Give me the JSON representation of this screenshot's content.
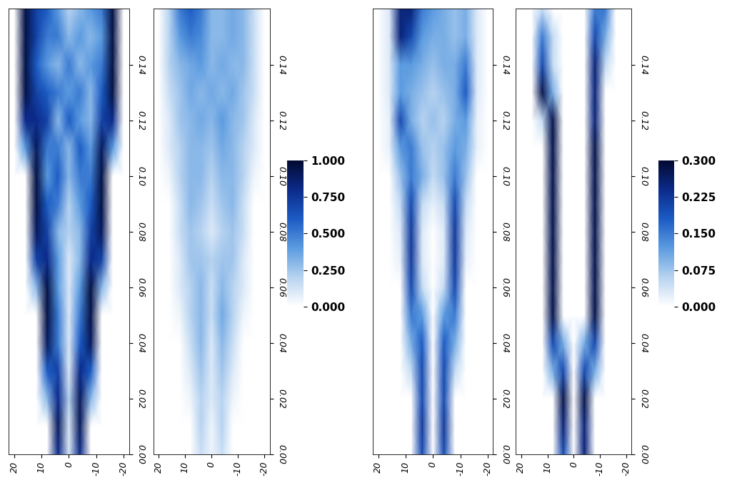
{
  "chart_data": [
    {
      "type": "heatmap",
      "x": [
        -20,
        -16,
        -12,
        -8,
        -4,
        0,
        4,
        8,
        12,
        16,
        20
      ],
      "y": [
        0,
        0.01,
        0.02,
        0.03,
        0.04,
        0.05,
        0.06,
        0.07,
        0.08,
        0.09,
        0.1,
        0.11,
        0.12,
        0.13,
        0.14,
        0.15,
        0.16
      ],
      "cells": [
        [
          0,
          0,
          0,
          0,
          0.8,
          0.1,
          0.8,
          0,
          0,
          0,
          0
        ],
        [
          0,
          0,
          0,
          0,
          0.9,
          0.1,
          0.9,
          0,
          0,
          0,
          0
        ],
        [
          0,
          0,
          0,
          0.3,
          0.9,
          0.2,
          0.8,
          0.3,
          0,
          0,
          0
        ],
        [
          0,
          0,
          0,
          0.6,
          0.8,
          0.1,
          0.7,
          0.6,
          0,
          0,
          0
        ],
        [
          0,
          0,
          0,
          0.9,
          0.6,
          0.1,
          0.5,
          0.9,
          0,
          0,
          0
        ],
        [
          0,
          0,
          0,
          0.95,
          0.5,
          0.1,
          0.5,
          0.95,
          0,
          0,
          0
        ],
        [
          0,
          0,
          0.3,
          0.95,
          0.4,
          0.1,
          0.4,
          0.95,
          0.3,
          0,
          0
        ],
        [
          0,
          0,
          0.7,
          0.8,
          0.3,
          0.1,
          0.4,
          0.8,
          0.7,
          0,
          0
        ],
        [
          0,
          0,
          0.9,
          0.7,
          0.3,
          0.2,
          0.3,
          0.7,
          0.9,
          0,
          0
        ],
        [
          0,
          0,
          0.95,
          0.6,
          0.4,
          0.2,
          0.5,
          0.6,
          0.95,
          0,
          0
        ],
        [
          0,
          0,
          0.95,
          0.5,
          0.5,
          0.3,
          0.6,
          0.4,
          0.95,
          0,
          0
        ],
        [
          0,
          0.4,
          0.9,
          0.4,
          0.6,
          0.3,
          0.5,
          0.5,
          0.9,
          0.4,
          0
        ],
        [
          0,
          0.8,
          0.7,
          0.3,
          0.4,
          0.6,
          0.3,
          0.7,
          0.8,
          0.8,
          0
        ],
        [
          0,
          0.95,
          0.6,
          0.3,
          0.5,
          0.4,
          0.5,
          0.6,
          0.7,
          0.95,
          0
        ],
        [
          0,
          0.95,
          0.5,
          0.4,
          0.3,
          0.5,
          0.3,
          0.4,
          0.6,
          0.95,
          0
        ],
        [
          0,
          0.95,
          0.4,
          0.3,
          0.4,
          0.3,
          0.5,
          0.5,
          0.7,
          0.95,
          0
        ],
        [
          0,
          0.95,
          0.5,
          0.4,
          0.3,
          0.2,
          0.4,
          0.6,
          0.7,
          0.95,
          0
        ]
      ],
      "color_range": [
        0,
        1
      ],
      "xlim": [
        22,
        -22
      ],
      "xticks": [
        20,
        10,
        0,
        -10,
        -20
      ],
      "ylim": [
        0,
        0.16
      ],
      "yticks": [
        {
          "value": 0,
          "label": "0.00"
        },
        0.02,
        0.04,
        0.06,
        0.08,
        {
          "value": 0.1,
          "label": "0.10"
        },
        0.12,
        0.14
      ]
    },
    {
      "type": "heatmap",
      "x": [
        -20,
        -16,
        -12,
        -8,
        -4,
        0,
        4,
        8,
        12,
        16,
        20
      ],
      "y": [
        0,
        0.01,
        0.02,
        0.03,
        0.04,
        0.05,
        0.06,
        0.07,
        0.08,
        0.09,
        0.1,
        0.11,
        0.12,
        0.13,
        0.14,
        0.15,
        0.16
      ],
      "cells": [
        [
          0,
          0,
          0,
          0,
          0.15,
          0.05,
          0.15,
          0,
          0,
          0,
          0
        ],
        [
          0,
          0,
          0,
          0,
          0.2,
          0.05,
          0.2,
          0,
          0,
          0,
          0
        ],
        [
          0,
          0,
          0,
          0.05,
          0.2,
          0.1,
          0.2,
          0.05,
          0,
          0,
          0
        ],
        [
          0,
          0,
          0,
          0.1,
          0.25,
          0.1,
          0.25,
          0.1,
          0,
          0,
          0
        ],
        [
          0,
          0,
          0,
          0.15,
          0.3,
          0.1,
          0.3,
          0.15,
          0,
          0,
          0
        ],
        [
          0,
          0,
          0.05,
          0.2,
          0.35,
          0.15,
          0.3,
          0.2,
          0.05,
          0,
          0
        ],
        [
          0,
          0,
          0.1,
          0.2,
          0.3,
          0.15,
          0.3,
          0.2,
          0.1,
          0,
          0
        ],
        [
          0,
          0,
          0.1,
          0.25,
          0.25,
          0.2,
          0.25,
          0.25,
          0.1,
          0,
          0
        ],
        [
          0,
          0,
          0.15,
          0.25,
          0.2,
          0.1,
          0.2,
          0.25,
          0.15,
          0,
          0
        ],
        [
          0,
          0,
          0.15,
          0.3,
          0.25,
          0.15,
          0.25,
          0.3,
          0.15,
          0,
          0
        ],
        [
          0,
          0.05,
          0.2,
          0.3,
          0.3,
          0.2,
          0.3,
          0.3,
          0.2,
          0.05,
          0
        ],
        [
          0,
          0.1,
          0.2,
          0.3,
          0.35,
          0.25,
          0.3,
          0.3,
          0.2,
          0.1,
          0
        ],
        [
          0,
          0.1,
          0.25,
          0.3,
          0.4,
          0.3,
          0.35,
          0.3,
          0.25,
          0.1,
          0
        ],
        [
          0,
          0.15,
          0.25,
          0.35,
          0.3,
          0.35,
          0.3,
          0.35,
          0.25,
          0.15,
          0
        ],
        [
          0,
          0.15,
          0.3,
          0.3,
          0.35,
          0.3,
          0.4,
          0.35,
          0.3,
          0.2,
          0
        ],
        [
          0,
          0.15,
          0.3,
          0.35,
          0.3,
          0.3,
          0.45,
          0.5,
          0.4,
          0.2,
          0
        ],
        [
          0,
          0.15,
          0.3,
          0.35,
          0.3,
          0.3,
          0.5,
          0.6,
          0.5,
          0.2,
          0
        ]
      ],
      "color_range": [
        0,
        1
      ],
      "colorbar_ticks": [
        {
          "value": 0,
          "label": "0.000"
        },
        {
          "value": 0.25,
          "label": "0.250"
        },
        {
          "value": 0.5,
          "label": "0.500"
        },
        {
          "value": 0.75,
          "label": "0.750"
        },
        {
          "value": 1,
          "label": "1.000"
        }
      ],
      "xlim": [
        22,
        -22
      ],
      "xticks": [
        20,
        10,
        0,
        -10,
        -20
      ],
      "ylim": [
        0,
        0.16
      ],
      "yticks": [
        {
          "value": 0,
          "label": "0.00"
        },
        0.02,
        0.04,
        0.06,
        0.08,
        {
          "value": 0.1,
          "label": "0.10"
        },
        0.12,
        0.14
      ]
    },
    {
      "type": "heatmap",
      "x": [
        -20,
        -16,
        -12,
        -8,
        -4,
        0,
        4,
        8,
        12,
        16,
        20
      ],
      "y": [
        0,
        0.01,
        0.02,
        0.03,
        0.04,
        0.05,
        0.06,
        0.07,
        0.08,
        0.09,
        0.1,
        0.11,
        0.12,
        0.13,
        0.14,
        0.15,
        0.16
      ],
      "cells": [
        [
          0,
          0,
          0,
          0,
          0.2,
          0,
          0.2,
          0,
          0,
          0,
          0
        ],
        [
          0,
          0,
          0,
          0,
          0.22,
          0,
          0.22,
          0,
          0,
          0,
          0
        ],
        [
          0,
          0,
          0,
          0,
          0.2,
          0,
          0.2,
          0,
          0,
          0,
          0
        ],
        [
          0,
          0,
          0,
          0.05,
          0.2,
          0,
          0.2,
          0.05,
          0,
          0,
          0
        ],
        [
          0,
          0,
          0,
          0.1,
          0.18,
          0,
          0.18,
          0.1,
          0,
          0,
          0
        ],
        [
          0,
          0,
          0,
          0.15,
          0.12,
          0,
          0.12,
          0.15,
          0,
          0,
          0
        ],
        [
          0,
          0,
          0,
          0.2,
          0.05,
          0,
          0.05,
          0.2,
          0,
          0,
          0
        ],
        [
          0,
          0,
          0.02,
          0.22,
          0.03,
          0,
          0.03,
          0.22,
          0.02,
          0,
          0
        ],
        [
          0,
          0,
          0.03,
          0.22,
          0.03,
          0,
          0.03,
          0.22,
          0.03,
          0,
          0
        ],
        [
          0,
          0,
          0.05,
          0.2,
          0.05,
          0.02,
          0.05,
          0.2,
          0.05,
          0,
          0
        ],
        [
          0,
          0,
          0.08,
          0.15,
          0.08,
          0.05,
          0.1,
          0.15,
          0.08,
          0,
          0
        ],
        [
          0,
          0.02,
          0.1,
          0.12,
          0.08,
          0.06,
          0.08,
          0.15,
          0.12,
          0.02,
          0
        ],
        [
          0,
          0.02,
          0.12,
          0.1,
          0.06,
          0.08,
          0.06,
          0.1,
          0.2,
          0.02,
          0
        ],
        [
          0,
          0.03,
          0.18,
          0.1,
          0.08,
          0.06,
          0.08,
          0.1,
          0.12,
          0.03,
          0
        ],
        [
          0,
          0.03,
          0.15,
          0.1,
          0.1,
          0.08,
          0.1,
          0.12,
          0.12,
          0.03,
          0
        ],
        [
          0,
          0.03,
          0.1,
          0.08,
          0.1,
          0.1,
          0.12,
          0.2,
          0.25,
          0.03,
          0
        ],
        [
          0,
          0.03,
          0.1,
          0.08,
          0.1,
          0.12,
          0.15,
          0.25,
          0.25,
          0.03,
          0
        ]
      ],
      "color_range": [
        0,
        0.3
      ],
      "xlim": [
        22,
        -22
      ],
      "xticks": [
        20,
        10,
        0,
        -10,
        -20
      ],
      "ylim": [
        0,
        0.16
      ],
      "yticks": [
        {
          "value": 0,
          "label": "0.00"
        },
        0.02,
        0.04,
        0.06,
        0.08,
        {
          "value": 0.1,
          "label": "0.10"
        },
        0.12,
        0.14
      ]
    },
    {
      "type": "heatmap",
      "x": [
        -20,
        -16,
        -12,
        -8,
        -4,
        0,
        4,
        8,
        12,
        16,
        20
      ],
      "y": [
        0,
        0.01,
        0.02,
        0.03,
        0.04,
        0.05,
        0.06,
        0.07,
        0.08,
        0.09,
        0.1,
        0.11,
        0.12,
        0.13,
        0.14,
        0.15,
        0.16
      ],
      "cells": [
        [
          0,
          0,
          0,
          0,
          0.25,
          0,
          0.2,
          0,
          0,
          0,
          0
        ],
        [
          0,
          0,
          0,
          0,
          0.25,
          0,
          0.25,
          0,
          0,
          0,
          0
        ],
        [
          0,
          0,
          0,
          0,
          0.28,
          0,
          0.28,
          0,
          0,
          0,
          0
        ],
        [
          0,
          0,
          0,
          0.1,
          0.2,
          0,
          0.2,
          0.1,
          0,
          0,
          0
        ],
        [
          0,
          0,
          0,
          0.2,
          0.1,
          0,
          0.1,
          0.2,
          0,
          0,
          0
        ],
        [
          0,
          0,
          0,
          0.28,
          0,
          0,
          0,
          0.28,
          0,
          0,
          0
        ],
        [
          0,
          0,
          0,
          0.28,
          0,
          0,
          0,
          0.28,
          0,
          0,
          0
        ],
        [
          0,
          0,
          0,
          0.28,
          0,
          0,
          0,
          0.28,
          0,
          0,
          0
        ],
        [
          0,
          0,
          0,
          0.28,
          0,
          0,
          0,
          0.28,
          0,
          0,
          0
        ],
        [
          0,
          0,
          0,
          0.28,
          0,
          0,
          0,
          0.28,
          0,
          0,
          0
        ],
        [
          0,
          0,
          0,
          0.28,
          0,
          0,
          0,
          0.28,
          0,
          0,
          0
        ],
        [
          0,
          0,
          0,
          0.28,
          0,
          0,
          0,
          0.28,
          0,
          0,
          0
        ],
        [
          0,
          0,
          0,
          0.25,
          0,
          0,
          0,
          0.28,
          0.05,
          0,
          0
        ],
        [
          0,
          0,
          0,
          0.25,
          0,
          0,
          0,
          0.1,
          0.28,
          0,
          0
        ],
        [
          0,
          0,
          0.05,
          0.25,
          0,
          0,
          0,
          0.05,
          0.2,
          0,
          0
        ],
        [
          0,
          0,
          0.1,
          0.2,
          0,
          0,
          0,
          0.05,
          0.15,
          0,
          0
        ],
        [
          0,
          0,
          0.15,
          0.15,
          0,
          0,
          0,
          0,
          0.05,
          0,
          0
        ]
      ],
      "color_range": [
        0,
        0.3
      ],
      "colorbar_ticks": [
        {
          "value": 0,
          "label": "0.000"
        },
        {
          "value": 0.075,
          "label": "0.075"
        },
        {
          "value": 0.15,
          "label": "0.150"
        },
        {
          "value": 0.225,
          "label": "0.225"
        },
        {
          "value": 0.3,
          "label": "0.300"
        }
      ],
      "xlim": [
        22,
        -22
      ],
      "xticks": [
        20,
        10,
        0,
        -10,
        -20
      ],
      "ylim": [
        0,
        0.16
      ],
      "yticks": [
        {
          "value": 0,
          "label": "0.00"
        },
        0.02,
        0.04,
        0.06,
        0.08,
        {
          "value": 0.1,
          "label": "0.10"
        },
        0.12,
        0.14
      ]
    }
  ]
}
